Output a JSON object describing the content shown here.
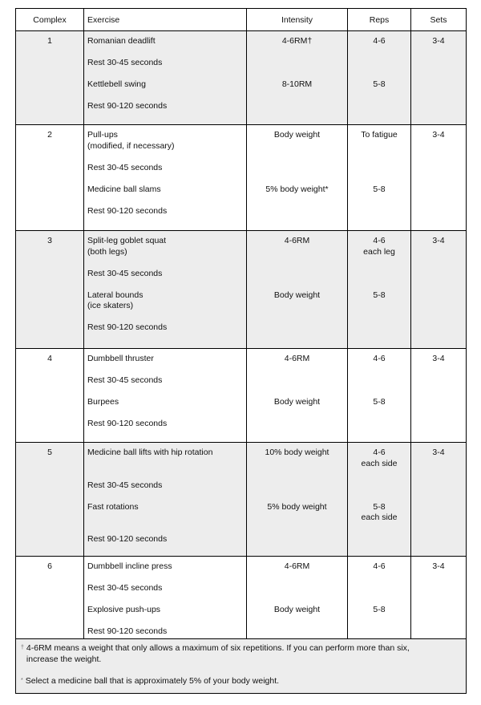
{
  "headers": [
    "Complex",
    "Exercise",
    "Intensity",
    "Reps",
    "Sets"
  ],
  "rows": [
    {
      "complex": "1",
      "sets": "3-4",
      "items": [
        {
          "exercise": [
            "Romanian deadlift"
          ],
          "intensity": "4-6RM†",
          "reps": [
            "4-6"
          ]
        },
        {
          "exercise": [
            "Rest 30-45 seconds"
          ],
          "intensity": "",
          "reps": []
        },
        {
          "exercise": [
            "Kettlebell swing"
          ],
          "intensity": "8-10RM",
          "reps": [
            "5-8"
          ]
        },
        {
          "exercise": [
            "Rest 90-120 seconds"
          ],
          "intensity": "",
          "reps": []
        }
      ]
    },
    {
      "complex": "2",
      "sets": "3-4",
      "items": [
        {
          "exercise": [
            "Pull-ups",
            "(modified, if necessary)"
          ],
          "intensity": "Body weight",
          "reps": [
            "To fatigue"
          ]
        },
        {
          "exercise": [
            "Rest 30-45 seconds"
          ],
          "intensity": "",
          "reps": []
        },
        {
          "exercise": [
            "Medicine ball slams"
          ],
          "intensity": "5% body weight*",
          "reps": [
            "5-8"
          ]
        },
        {
          "exercise": [
            "Rest 90-120 seconds"
          ],
          "intensity": "",
          "reps": []
        }
      ]
    },
    {
      "complex": "3",
      "sets": "3-4",
      "items": [
        {
          "exercise": [
            "Split-leg goblet squat",
            "(both legs)"
          ],
          "intensity": "4-6RM",
          "reps": [
            "4-6",
            "each leg"
          ]
        },
        {
          "exercise": [
            "Rest 30-45 seconds"
          ],
          "intensity": "",
          "reps": []
        },
        {
          "exercise": [
            "Lateral bounds",
            "(ice skaters)"
          ],
          "intensity": "Body weight",
          "reps": [
            "5-8"
          ]
        },
        {
          "exercise": [
            "Rest 90-120 seconds"
          ],
          "intensity": "",
          "reps": []
        }
      ]
    },
    {
      "complex": "4",
      "sets": "3-4",
      "items": [
        {
          "exercise": [
            "Dumbbell thruster"
          ],
          "intensity": "4-6RM",
          "reps": [
            "4-6"
          ]
        },
        {
          "exercise": [
            "Rest 30-45 seconds"
          ],
          "intensity": "",
          "reps": []
        },
        {
          "exercise": [
            "Burpees"
          ],
          "intensity": "Body weight",
          "reps": [
            "5-8"
          ]
        },
        {
          "exercise": [
            "Rest 90-120 seconds"
          ],
          "intensity": "",
          "reps": []
        }
      ]
    },
    {
      "complex": "5",
      "sets": "3-4",
      "items": [
        {
          "exercise": [
            "Medicine ball lifts with hip rotation"
          ],
          "intensity": "10% body weight",
          "reps": [
            "4-6",
            "each side"
          ]
        },
        {
          "exercise": [
            "Rest 30-45 seconds"
          ],
          "intensity": "",
          "reps": []
        },
        {
          "exercise": [
            "Fast rotations"
          ],
          "intensity": "5% body weight",
          "reps": [
            "5-8",
            "each side"
          ]
        },
        {
          "exercise": [
            "Rest 90-120 seconds"
          ],
          "intensity": "",
          "reps": []
        }
      ]
    },
    {
      "complex": "6",
      "sets": "3-4",
      "items": [
        {
          "exercise": [
            "Dumbbell incline press"
          ],
          "intensity": "4-6RM",
          "reps": [
            "4-6"
          ]
        },
        {
          "exercise": [
            "Rest 30-45 seconds"
          ],
          "intensity": "",
          "reps": []
        },
        {
          "exercise": [
            "Explosive push-ups"
          ],
          "intensity": "Body weight",
          "reps": [
            "5-8"
          ]
        },
        {
          "exercise": [
            "Rest 90-120 seconds"
          ],
          "intensity": "",
          "reps": []
        }
      ]
    }
  ],
  "footnotes": [
    {
      "mark": "†",
      "text": "4-6RM means a weight that only allows a maximum of six repetitions. If you can perform more than six, increase the weight."
    },
    {
      "mark": "*",
      "text": "Select a medicine ball that is approximately 5% of your body weight."
    }
  ],
  "colors": {
    "shade": "#ededed",
    "border": "#000000"
  }
}
